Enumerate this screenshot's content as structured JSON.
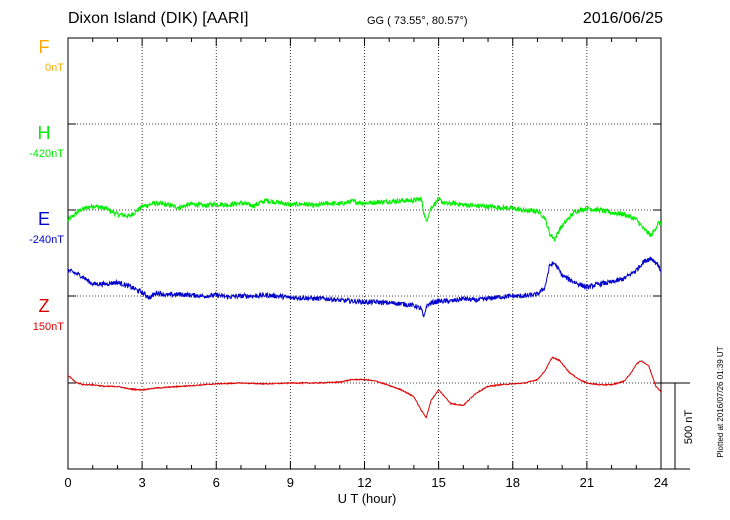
{
  "header": {
    "title": "Dixon Island (DIK)  [AARI]",
    "coords": "GG ( 73.55°,  80.57°)",
    "date": "2016/06/25"
  },
  "footer": {
    "plotted": "Plotted at 2016/07/26 01:39 UT",
    "scale_bar": "500 nT"
  },
  "chart_data": {
    "type": "line",
    "xlabel": "U T (hour)",
    "xlim": [
      0,
      24
    ],
    "xticks": [
      "0",
      "3",
      "6",
      "9",
      "12",
      "15",
      "18",
      "21",
      "24"
    ],
    "grid": true,
    "series": [
      {
        "name": "F",
        "baseline": "0nT",
        "color": "#ffaa00",
        "x": [],
        "y": []
      },
      {
        "name": "H",
        "baseline": "-420nT",
        "color": "#00ee00",
        "x": [
          0,
          0.5,
          1.0,
          1.5,
          2.0,
          2.5,
          3.0,
          3.5,
          4.0,
          4.5,
          5.0,
          5.5,
          6.0,
          6.5,
          7.0,
          7.5,
          8.0,
          8.5,
          9.0,
          9.5,
          10.0,
          10.5,
          11.0,
          11.5,
          12.0,
          12.5,
          13.0,
          13.5,
          14.0,
          14.3,
          14.4,
          14.5,
          14.7,
          15.0,
          15.3,
          15.6,
          16.0,
          16.5,
          17.0,
          17.5,
          18.0,
          18.5,
          19.0,
          19.3,
          19.5,
          19.7,
          19.9,
          20.2,
          20.5,
          21.0,
          21.5,
          22.0,
          22.5,
          23.0,
          23.3,
          23.6,
          23.9,
          24.0
        ],
        "y": [
          -60,
          0,
          25,
          10,
          -25,
          -35,
          20,
          40,
          30,
          15,
          35,
          25,
          35,
          30,
          40,
          25,
          55,
          45,
          30,
          35,
          25,
          40,
          35,
          50,
          40,
          45,
          50,
          55,
          55,
          65,
          -15,
          -65,
          15,
          60,
          35,
          40,
          30,
          25,
          20,
          15,
          10,
          -5,
          -5,
          -45,
          -140,
          -170,
          -110,
          -60,
          -10,
          10,
          0,
          -15,
          -25,
          -55,
          -110,
          -150,
          -75,
          -80
        ]
      },
      {
        "name": "E",
        "baseline": "-240nT",
        "color": "#0000cc",
        "x": [
          0,
          0.5,
          1.0,
          1.5,
          2.0,
          2.5,
          3.0,
          3.3,
          3.6,
          4.0,
          4.5,
          5.0,
          5.5,
          6.0,
          6.5,
          7.0,
          7.5,
          8.0,
          8.5,
          9.0,
          9.5,
          10.0,
          10.5,
          11.0,
          11.5,
          12.0,
          12.5,
          13.0,
          13.5,
          14.0,
          14.3,
          14.4,
          14.5,
          14.7,
          15.0,
          15.5,
          16.0,
          16.5,
          17.0,
          17.5,
          18.0,
          18.5,
          19.0,
          19.3,
          19.5,
          19.7,
          20.0,
          20.5,
          21.0,
          21.5,
          22.0,
          22.5,
          23.0,
          23.3,
          23.6,
          23.9,
          24.0
        ],
        "y": [
          150,
          120,
          70,
          70,
          80,
          55,
          20,
          -10,
          20,
          5,
          10,
          5,
          0,
          5,
          -5,
          0,
          0,
          5,
          0,
          -10,
          -10,
          -15,
          -15,
          -25,
          -30,
          -35,
          -35,
          -40,
          -45,
          -55,
          -75,
          -130,
          -60,
          -40,
          -30,
          -30,
          -15,
          -25,
          -15,
          -5,
          0,
          0,
          10,
          50,
          180,
          190,
          120,
          80,
          50,
          70,
          80,
          100,
          150,
          200,
          220,
          180,
          130
        ]
      },
      {
        "name": "Z",
        "baseline": "150nT",
        "color": "#dd0000",
        "x": [
          0,
          0.3,
          0.6,
          1.0,
          1.5,
          2.0,
          2.5,
          3.0,
          3.5,
          4.0,
          5.0,
          6.0,
          7.0,
          8.0,
          9.0,
          10.0,
          11.0,
          11.5,
          12.0,
          12.5,
          13.0,
          13.5,
          14.0,
          14.3,
          14.5,
          14.7,
          15.0,
          15.5,
          16.0,
          16.5,
          17.0,
          17.5,
          18.0,
          18.5,
          19.0,
          19.3,
          19.6,
          19.9,
          20.3,
          20.7,
          21.0,
          21.5,
          22.0,
          22.5,
          22.8,
          23.0,
          23.2,
          23.5,
          23.8,
          24.0
        ],
        "y": [
          45,
          5,
          -10,
          -10,
          -20,
          -20,
          -35,
          -40,
          -30,
          -25,
          -15,
          -5,
          0,
          -5,
          0,
          0,
          5,
          20,
          20,
          10,
          -15,
          -40,
          -80,
          -160,
          -200,
          -100,
          -40,
          -120,
          -130,
          -60,
          -20,
          -10,
          -5,
          0,
          20,
          70,
          150,
          130,
          60,
          20,
          0,
          -10,
          -10,
          10,
          60,
          110,
          130,
          100,
          -20,
          -50
        ]
      }
    ]
  }
}
